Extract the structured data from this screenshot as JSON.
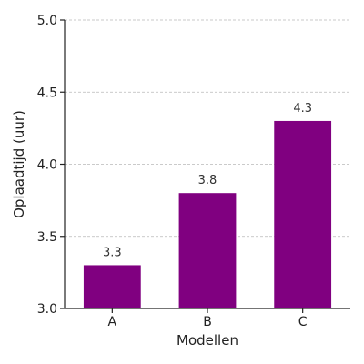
{
  "chart_data": {
    "type": "bar",
    "categories": [
      "A",
      "B",
      "C"
    ],
    "values": [
      3.3,
      3.8,
      4.3
    ],
    "data_labels": [
      "3.3",
      "3.8",
      "4.3"
    ],
    "xlabel": "Modellen",
    "ylabel": "Oplaadtijd (uur)",
    "ylim": [
      3.0,
      5.0
    ],
    "yticks": [
      3.0,
      3.5,
      4.0,
      4.5,
      5.0
    ],
    "ytick_labels": [
      "3.0",
      "3.5",
      "4.0",
      "4.5",
      "5.0"
    ],
    "grid": "y-dashed",
    "bar_color": "#800080",
    "legend": "none"
  }
}
